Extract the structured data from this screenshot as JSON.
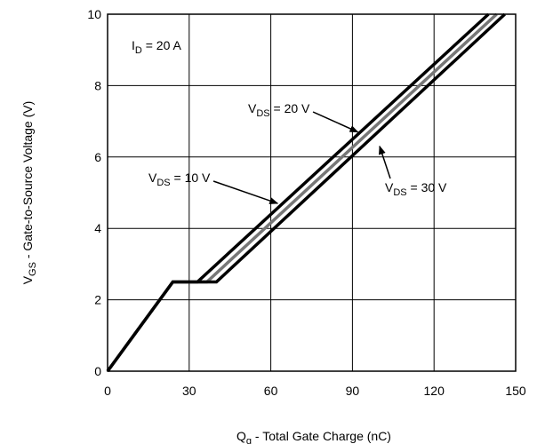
{
  "chart_data": {
    "type": "line",
    "title": "",
    "xlabel": {
      "main": "Q",
      "sub": "g",
      "rest": " - Total Gate Charge (nC)"
    },
    "ylabel": {
      "main": "V",
      "sub": "GS",
      "rest": " - Gate-to-Source Voltage (V)"
    },
    "xlim": [
      0,
      150
    ],
    "ylim": [
      0,
      10
    ],
    "xticks": [
      0,
      30,
      60,
      90,
      120,
      150
    ],
    "yticks": [
      0,
      2,
      4,
      6,
      8,
      10
    ],
    "grid": true,
    "series": [
      {
        "name": "V_DS = 10 V",
        "color": "#000000",
        "points": [
          [
            0,
            0
          ],
          [
            24,
            2.5
          ],
          [
            33,
            2.5
          ],
          [
            140,
            10
          ]
        ]
      },
      {
        "name": "V_DS = 20 V",
        "color": "#777777",
        "points": [
          [
            0,
            0
          ],
          [
            24,
            2.5
          ],
          [
            36.5,
            2.5
          ],
          [
            143,
            10
          ]
        ]
      },
      {
        "name": "V_DS = 30 V",
        "color": "#000000",
        "points": [
          [
            0,
            0
          ],
          [
            24,
            2.5
          ],
          [
            40,
            2.5
          ],
          [
            146,
            10
          ]
        ]
      }
    ],
    "annotations": [
      {
        "main": "I",
        "sub": "D",
        "rest": " = 20 A"
      },
      {
        "main": "V",
        "sub": "DS",
        "rest": " = 20 V",
        "arrow_to": [
          92,
          6.7
        ]
      },
      {
        "main": "V",
        "sub": "DS",
        "rest": " = 10 V",
        "arrow_to": [
          62.5,
          4.7
        ]
      },
      {
        "main": "V",
        "sub": "DS",
        "rest": " = 30 V",
        "arrow_to": [
          100,
          6.3
        ]
      }
    ]
  }
}
